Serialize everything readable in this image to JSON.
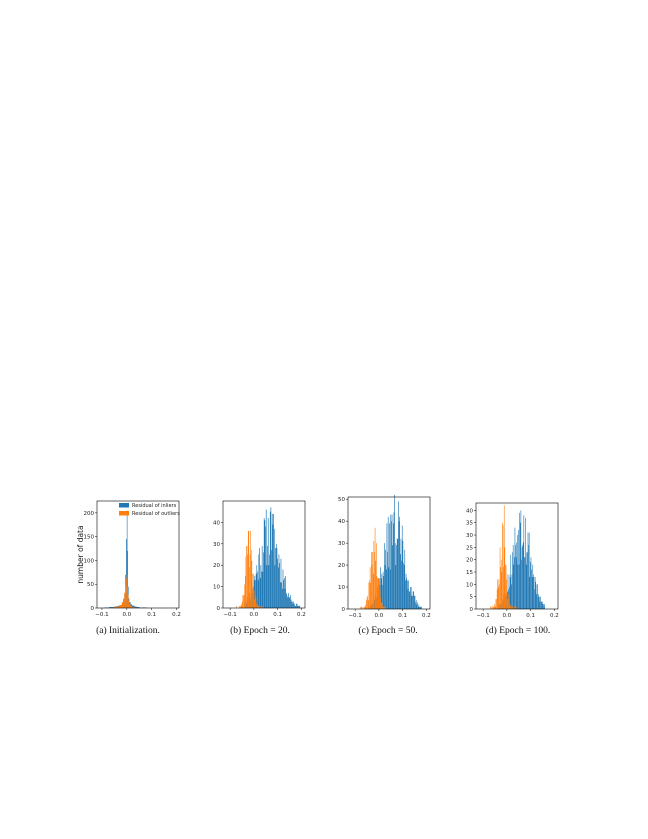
{
  "colors": {
    "inliers": "#1f77b4",
    "outliers": "#ff7f0e"
  },
  "chart_data": [
    {
      "type": "histogram",
      "caption": "(a) Initialization.",
      "ylabel": "number of data",
      "xlim": [
        -0.12,
        0.21
      ],
      "ylim": [
        0,
        225
      ],
      "xticks": [
        -0.1,
        0.0,
        0.1,
        0.2
      ],
      "xtick_labels": [
        "−0.1",
        "0.0",
        "0.1",
        "0.2"
      ],
      "yticks": [
        0,
        50,
        100,
        150,
        200
      ],
      "legend": {
        "position": "top-right",
        "entries": [
          "Residual of inliers",
          "Residual of outliers"
        ]
      },
      "series": [
        {
          "name": "Residual of inliers",
          "bins": [
            [
              -0.09,
              -0.08,
              1
            ],
            [
              -0.08,
              -0.07,
              1
            ],
            [
              -0.07,
              -0.06,
              2
            ],
            [
              -0.06,
              -0.05,
              2
            ],
            [
              -0.05,
              -0.04,
              3
            ],
            [
              -0.04,
              -0.03,
              4
            ],
            [
              -0.03,
              -0.02,
              6
            ],
            [
              -0.02,
              -0.015,
              10
            ],
            [
              -0.015,
              -0.01,
              16
            ],
            [
              -0.01,
              -0.006,
              30
            ],
            [
              -0.006,
              -0.003,
              70
            ],
            [
              -0.003,
              0.0,
              145
            ],
            [
              0.0,
              0.002,
              205
            ],
            [
              0.002,
              0.004,
              120
            ],
            [
              0.004,
              0.007,
              45
            ],
            [
              0.007,
              0.01,
              20
            ],
            [
              0.01,
              0.015,
              12
            ],
            [
              0.015,
              0.02,
              8
            ],
            [
              0.02,
              0.03,
              5
            ],
            [
              0.03,
              0.04,
              3
            ],
            [
              0.04,
              0.05,
              2
            ],
            [
              0.05,
              0.06,
              1
            ],
            [
              0.06,
              0.07,
              1
            ],
            [
              0.07,
              0.08,
              1
            ]
          ]
        },
        {
          "name": "Residual of outliers",
          "bins": [
            [
              -0.06,
              -0.05,
              1
            ],
            [
              -0.05,
              -0.04,
              2
            ],
            [
              -0.04,
              -0.03,
              3
            ],
            [
              -0.03,
              -0.02,
              6
            ],
            [
              -0.02,
              -0.015,
              12
            ],
            [
              -0.015,
              -0.01,
              20
            ],
            [
              -0.01,
              -0.006,
              32
            ],
            [
              -0.006,
              -0.003,
              48
            ],
            [
              -0.003,
              0.0,
              62
            ],
            [
              0.0,
              0.002,
              70
            ],
            [
              0.002,
              0.004,
              45
            ],
            [
              0.004,
              0.007,
              28
            ],
            [
              0.007,
              0.01,
              15
            ],
            [
              0.01,
              0.015,
              8
            ],
            [
              0.015,
              0.02,
              4
            ],
            [
              0.02,
              0.03,
              2
            ],
            [
              0.03,
              0.04,
              1
            ]
          ]
        }
      ]
    },
    {
      "type": "histogram",
      "caption": "(b) Epoch = 20.",
      "xlim": [
        -0.13,
        0.215
      ],
      "ylim": [
        0,
        50
      ],
      "xticks": [
        -0.1,
        0.0,
        0.1,
        0.2
      ],
      "xtick_labels": [
        "−0.1",
        "0.0",
        "0.1",
        "0.2"
      ],
      "yticks": [
        0,
        10,
        20,
        30,
        40
      ],
      "series": [
        {
          "name": "Residual of inliers",
          "dist": {
            "center": 0.065,
            "sigma": 0.045,
            "peak": 34,
            "xmin": -0.04,
            "xmax": 0.2,
            "bins": 85,
            "seed": 11,
            "spikes": [
              [
                0.072,
                47
              ],
              [
                0.046,
                41
              ]
            ]
          }
        },
        {
          "name": "Residual of outliers",
          "dist": {
            "center": -0.02,
            "sigma": 0.014,
            "peak": 30,
            "xmin": -0.075,
            "xmax": 0.04,
            "bins": 46,
            "seed": 23,
            "spikes": [
              [
                -0.022,
                36
              ]
            ]
          }
        }
      ]
    },
    {
      "type": "histogram",
      "caption": "(c) Epoch = 50.",
      "xlim": [
        -0.13,
        0.215
      ],
      "ylim": [
        0,
        51
      ],
      "xticks": [
        -0.1,
        0.0,
        0.1,
        0.2
      ],
      "xtick_labels": [
        "−0.1",
        "0.0",
        "0.1",
        "0.2"
      ],
      "yticks": [
        0,
        10,
        20,
        30,
        40,
        50
      ],
      "series": [
        {
          "name": "Residual of inliers",
          "dist": {
            "center": 0.065,
            "sigma": 0.042,
            "peak": 36,
            "xmin": -0.04,
            "xmax": 0.18,
            "bins": 82,
            "seed": 37,
            "spikes": [
              [
                0.082,
                49
              ],
              [
                0.062,
                44
              ]
            ]
          }
        },
        {
          "name": "Residual of outliers",
          "dist": {
            "center": -0.02,
            "sigma": 0.015,
            "peak": 27,
            "xmin": -0.08,
            "xmax": 0.04,
            "bins": 46,
            "seed": 41,
            "spikes": [
              [
                -0.015,
                37
              ]
            ]
          }
        }
      ]
    },
    {
      "type": "histogram",
      "caption": "(d) Epoch = 100.",
      "xlim": [
        -0.13,
        0.215
      ],
      "ylim": [
        0,
        43
      ],
      "xticks": [
        -0.1,
        0.0,
        0.1,
        0.2
      ],
      "xtick_labels": [
        "−0.1",
        "0.0",
        "0.1",
        "0.2"
      ],
      "yticks": [
        0,
        5,
        10,
        15,
        20,
        25,
        30,
        35,
        40
      ],
      "series": [
        {
          "name": "Residual of inliers",
          "dist": {
            "center": 0.062,
            "sigma": 0.038,
            "peak": 33,
            "xmin": -0.04,
            "xmax": 0.16,
            "bins": 80,
            "seed": 53,
            "spikes": [
              [
                0.058,
                40
              ],
              [
                0.071,
                38
              ]
            ]
          }
        },
        {
          "name": "Residual of outliers",
          "dist": {
            "center": -0.018,
            "sigma": 0.014,
            "peak": 26,
            "xmin": -0.07,
            "xmax": 0.04,
            "bins": 44,
            "seed": 67,
            "spikes": [
              [
                -0.01,
                42
              ]
            ]
          }
        }
      ]
    }
  ]
}
